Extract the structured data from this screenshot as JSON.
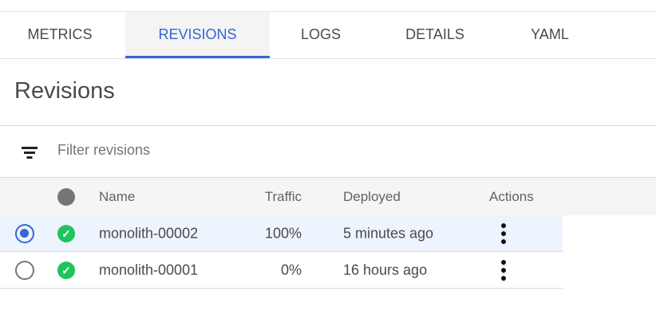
{
  "tabs": [
    {
      "label": "METRICS",
      "active": false
    },
    {
      "label": "REVISIONS",
      "active": true
    },
    {
      "label": "LOGS",
      "active": false
    },
    {
      "label": "DETAILS",
      "active": false
    },
    {
      "label": "YAML",
      "active": false
    }
  ],
  "page_title": "Revisions",
  "filter": {
    "placeholder": "Filter revisions",
    "icon": "filter-icon"
  },
  "table": {
    "headers": {
      "status": "status-dot",
      "name": "Name",
      "traffic": "Traffic",
      "deployed": "Deployed",
      "actions": "Actions"
    },
    "rows": [
      {
        "selected": true,
        "status": "ok",
        "name": "monolith-00002",
        "traffic": "100%",
        "deployed": "5 minutes ago"
      },
      {
        "selected": false,
        "status": "ok",
        "name": "monolith-00001",
        "traffic": "0%",
        "deployed": "16 hours ago"
      }
    ]
  },
  "colors": {
    "accent": "#3367d6",
    "success": "#1ec45c",
    "selected_row": "#eef4fd"
  }
}
